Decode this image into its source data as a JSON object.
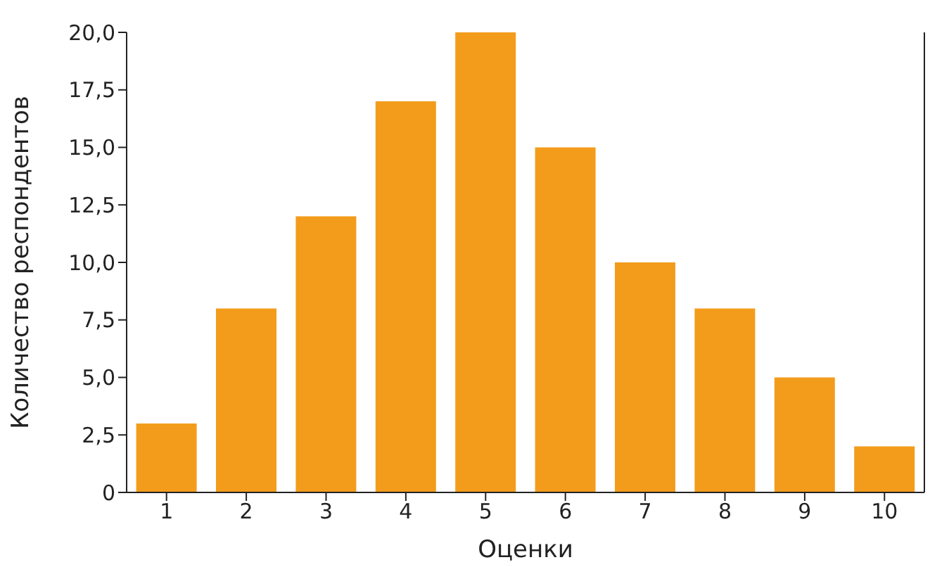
{
  "chart_data": {
    "type": "bar",
    "xlabel": "Оценки",
    "ylabel": "Количество респондентов",
    "categories": [
      "1",
      "2",
      "3",
      "4",
      "5",
      "6",
      "7",
      "8",
      "9",
      "10"
    ],
    "values": [
      3,
      8,
      12,
      17,
      20,
      15,
      10,
      8,
      5,
      2
    ],
    "color": "#f39c1c",
    "ylim": [
      0,
      20
    ],
    "yticks": [
      0,
      {
        "value": 2.5,
        "label": "2,5"
      },
      {
        "value": 5,
        "label": "5,0"
      },
      {
        "value": 7.5,
        "label": "7,5"
      },
      {
        "value": 10,
        "label": "10,0"
      },
      {
        "value": 12.5,
        "label": "12,5"
      },
      {
        "value": 15,
        "label": "15,0"
      },
      {
        "value": 17.5,
        "label": "17,5"
      },
      {
        "value": 20,
        "label": "20,0"
      }
    ],
    "grid": false,
    "legend": false
  }
}
